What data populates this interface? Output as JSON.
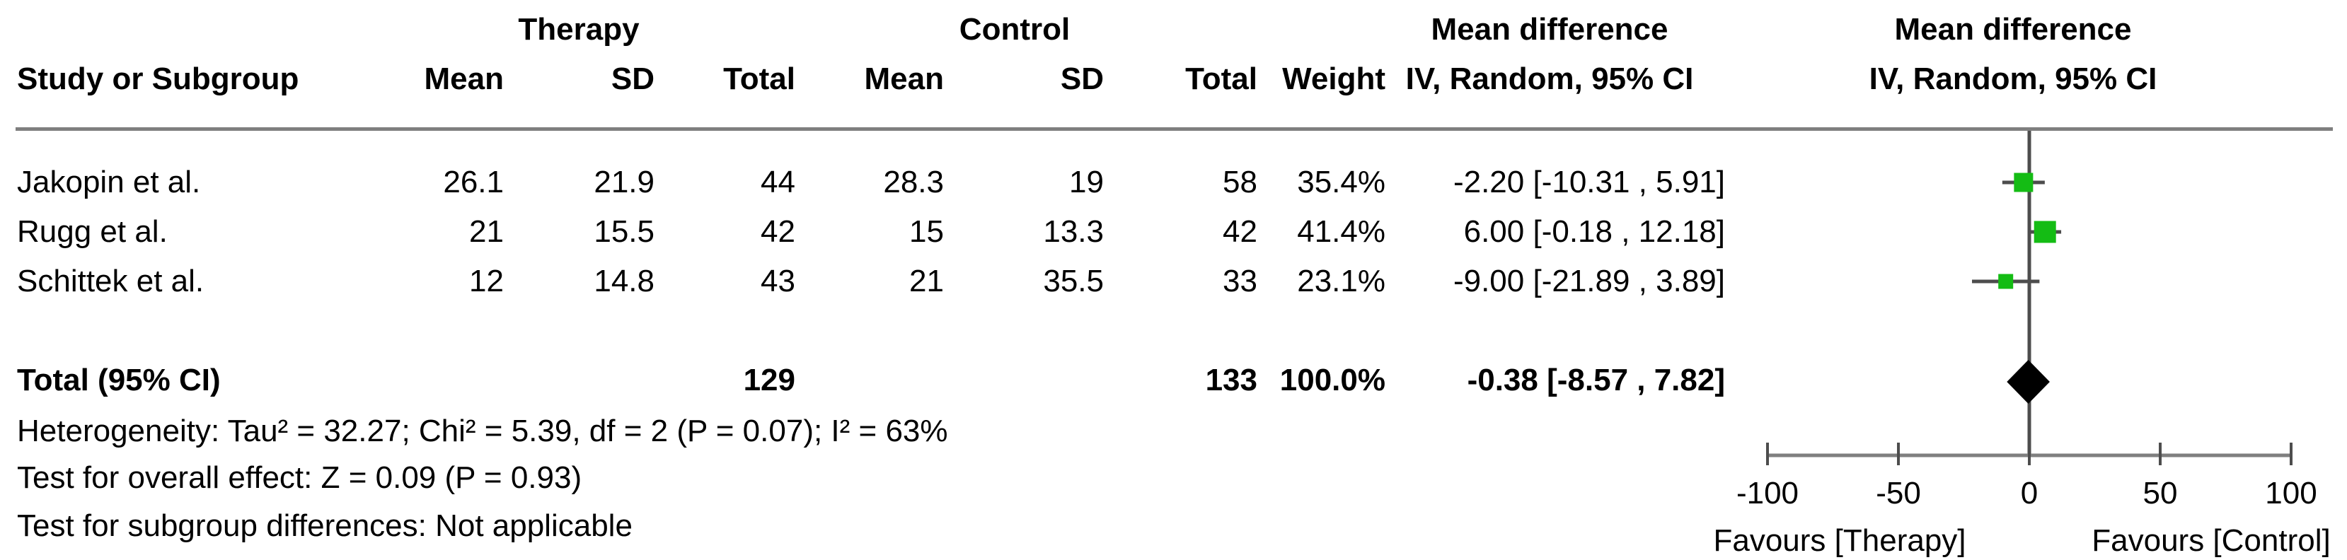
{
  "table": {
    "group_headers": {
      "therapy": "Therapy",
      "control": "Control",
      "md_left": "Mean difference",
      "md_right": "Mean difference"
    },
    "col_headers": {
      "study": "Study or Subgroup",
      "t_mean": "Mean",
      "t_sd": "SD",
      "t_total": "Total",
      "c_mean": "Mean",
      "c_sd": "SD",
      "c_total": "Total",
      "weight": "Weight",
      "ci_left": "IV, Random, 95% CI",
      "ci_right": "IV, Random, 95% CI"
    },
    "rows": [
      {
        "study": "Jakopin et al.",
        "t_mean": "26.1",
        "t_sd": "21.9",
        "t_total": "44",
        "c_mean": "28.3",
        "c_sd": "19",
        "c_total": "58",
        "weight": "35.4%",
        "ci": "-2.20 [-10.31 , 5.91]"
      },
      {
        "study": "Rugg et al.",
        "t_mean": "21",
        "t_sd": "15.5",
        "t_total": "42",
        "c_mean": "15",
        "c_sd": "13.3",
        "c_total": "42",
        "weight": "41.4%",
        "ci": "6.00 [-0.18 , 12.18]"
      },
      {
        "study": "Schittek et al.",
        "t_mean": "12",
        "t_sd": "14.8",
        "t_total": "43",
        "c_mean": "21",
        "c_sd": "35.5",
        "c_total": "33",
        "weight": "23.1%",
        "ci": "-9.00 [-21.89 , 3.89]"
      }
    ],
    "total_row": {
      "label": "Total (95% CI)",
      "t_total": "129",
      "c_total": "133",
      "weight": "100.0%",
      "ci": "-0.38 [-8.57 , 7.82]"
    },
    "footnotes": [
      "Heterogeneity: Tau² = 32.27; Chi² = 5.39, df = 2 (P = 0.07); I² = 63%",
      "Test for overall effect: Z = 0.09 (P = 0.93)",
      "Test for subgroup differences: Not applicable"
    ]
  },
  "chart_data": {
    "type": "forest",
    "effect_measure": "Mean difference (IV, Random, 95% CI)",
    "x_axis": {
      "min": -100,
      "max": 100,
      "ticks": [
        -100,
        -50,
        0,
        50,
        100
      ]
    },
    "studies": [
      {
        "name": "Jakopin et al.",
        "estimate": -2.2,
        "ci_low": -10.31,
        "ci_high": 5.91,
        "weight_pct": 35.4
      },
      {
        "name": "Rugg et al.",
        "estimate": 6.0,
        "ci_low": -0.18,
        "ci_high": 12.18,
        "weight_pct": 41.4
      },
      {
        "name": "Schittek et al.",
        "estimate": -9.0,
        "ci_low": -21.89,
        "ci_high": 3.89,
        "weight_pct": 23.1
      }
    ],
    "total": {
      "estimate": -0.38,
      "ci_low": -8.57,
      "ci_high": 7.82
    },
    "favours_left": "Favours [Therapy]",
    "favours_right": "Favours [Control]",
    "marker_color": "#14bc14",
    "line_color": "#4d4d4d",
    "axis_color": "#7f7f7f",
    "diamond_color": "#000000"
  }
}
